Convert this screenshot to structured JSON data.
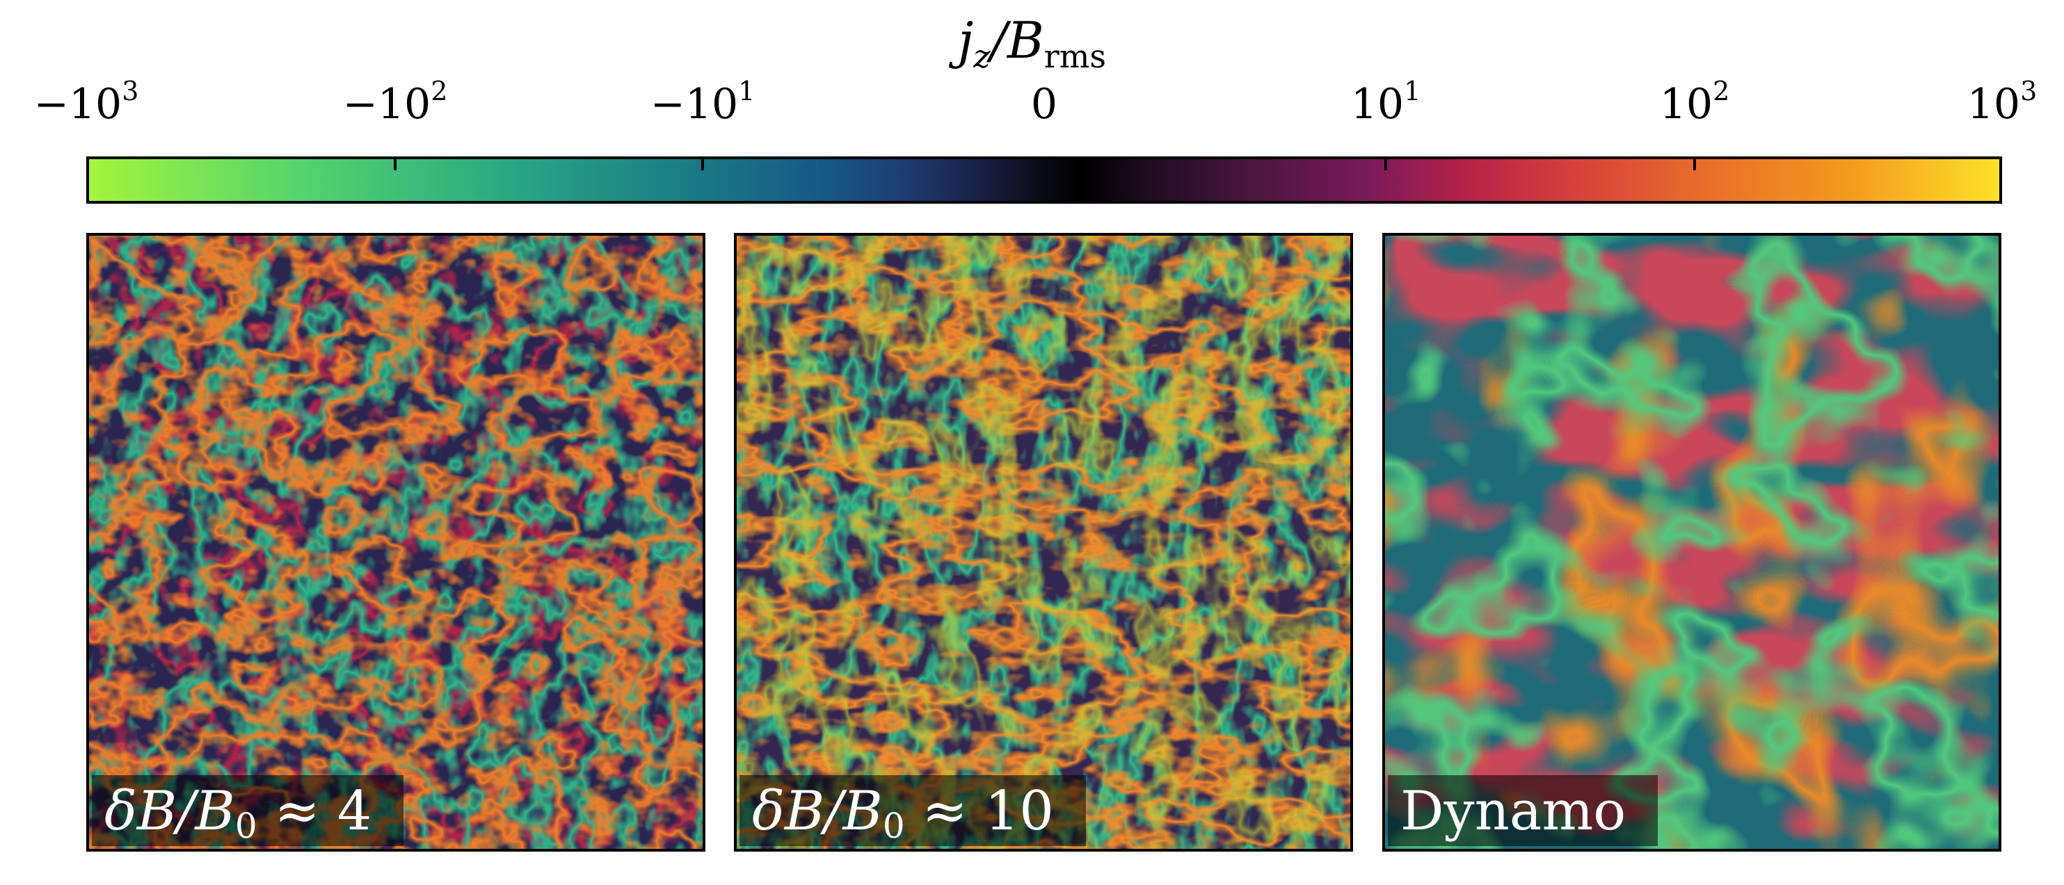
{
  "colorbar": {
    "label_main": "j",
    "label_sub_z": "z",
    "label_slash": "/",
    "label_B": "B",
    "label_sub_rms": "rms",
    "ticks": [
      {
        "base": "−10",
        "exp": "3"
      },
      {
        "base": "−10",
        "exp": "2"
      },
      {
        "base": "−10",
        "exp": "1"
      },
      {
        "base": "0",
        "exp": ""
      },
      {
        "base": "10",
        "exp": "1"
      },
      {
        "base": "10",
        "exp": "2"
      },
      {
        "base": "10",
        "exp": "3"
      }
    ],
    "colors": [
      "#a4f53c",
      "#2aa783",
      "#165a86",
      "#000000",
      "#7a1a5a",
      "#e9702a",
      "#fde128"
    ]
  },
  "panels": [
    {
      "label_pre": "δB/B",
      "label_sub": "0",
      "label_post": " ≈ 4"
    },
    {
      "label_pre": "δB/B",
      "label_sub": "0",
      "label_post": " ≈ 10"
    },
    {
      "label_text": "Dynamo"
    }
  ]
}
